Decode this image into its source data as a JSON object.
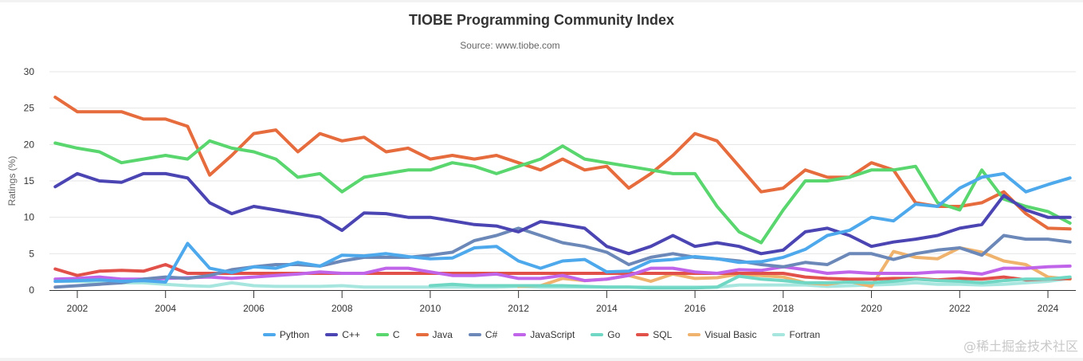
{
  "chart_data": {
    "type": "line",
    "title": "TIOBE Programming Community Index",
    "subtitle": "Source: www.tiobe.com",
    "xlabel": "",
    "ylabel": "Ratings (%)",
    "xlim": [
      2001.45,
      2024.65
    ],
    "ylim": [
      0,
      30
    ],
    "x_ticks": [
      "2002",
      "2004",
      "2006",
      "2008",
      "2010",
      "2012",
      "2014",
      "2016",
      "2018",
      "2020",
      "2022",
      "2024"
    ],
    "y_ticks": [
      "0",
      "5",
      "10",
      "15",
      "20",
      "25",
      "30"
    ],
    "grid": true,
    "legend": "bottom",
    "x": [
      2001.5,
      2002.0,
      2002.5,
      2003.0,
      2003.5,
      2004.0,
      2004.5,
      2005.0,
      2005.5,
      2006.0,
      2006.5,
      2007.0,
      2007.5,
      2008.0,
      2008.5,
      2009.0,
      2009.5,
      2010.0,
      2010.5,
      2011.0,
      2011.5,
      2012.0,
      2012.5,
      2013.0,
      2013.5,
      2014.0,
      2014.5,
      2015.0,
      2015.5,
      2016.0,
      2016.5,
      2017.0,
      2017.5,
      2018.0,
      2018.5,
      2019.0,
      2019.5,
      2020.0,
      2020.5,
      2021.0,
      2021.5,
      2022.0,
      2022.5,
      2023.0,
      2023.5,
      2024.0,
      2024.5
    ],
    "series": [
      {
        "name": "Python",
        "color": "#4ea8ec",
        "values": [
          1.2,
          1.3,
          1.4,
          1.2,
          1.3,
          1.1,
          6.4,
          3.0,
          2.4,
          3.2,
          3.0,
          3.8,
          3.3,
          4.8,
          4.7,
          5.0,
          4.6,
          4.3,
          4.4,
          5.8,
          6.0,
          4.0,
          3.0,
          4.0,
          4.2,
          2.5,
          2.6,
          4.0,
          4.2,
          4.6,
          4.3,
          3.8,
          3.9,
          4.5,
          5.6,
          7.5,
          8.2,
          10.0,
          9.5,
          11.8,
          11.5,
          14.0,
          15.5,
          16.0,
          13.5,
          14.5,
          15.4
        ]
      },
      {
        "name": "C++",
        "color": "#4b44b3",
        "values": [
          14.2,
          16.0,
          15.0,
          14.8,
          16.0,
          16.0,
          15.4,
          12.0,
          10.5,
          11.5,
          11.0,
          10.5,
          10.0,
          8.2,
          10.6,
          10.5,
          10.0,
          10.0,
          9.5,
          9.0,
          8.8,
          8.0,
          9.4,
          9.0,
          8.5,
          6.0,
          5.0,
          6.0,
          7.5,
          6.0,
          6.5,
          6.0,
          5.0,
          5.5,
          8.0,
          8.5,
          7.5,
          6.0,
          6.6,
          7.0,
          7.5,
          8.5,
          9.0,
          13.0,
          11.0,
          10.0,
          10.0
        ]
      },
      {
        "name": "C",
        "color": "#5ad66e",
        "values": [
          20.2,
          19.5,
          19.0,
          17.5,
          18.0,
          18.5,
          18.0,
          20.5,
          19.5,
          19.0,
          18.0,
          15.5,
          16.0,
          13.5,
          15.5,
          16.0,
          16.5,
          16.5,
          17.5,
          17.0,
          16.0,
          17.0,
          18.0,
          19.8,
          18.0,
          17.5,
          17.0,
          16.5,
          16.0,
          16.0,
          11.5,
          8.0,
          6.5,
          11.0,
          15.0,
          15.0,
          15.5,
          16.5,
          16.5,
          17.0,
          12.0,
          11.0,
          16.5,
          12.5,
          11.5,
          10.8,
          9.2
        ]
      },
      {
        "name": "Java",
        "color": "#e66c3d",
        "values": [
          26.5,
          24.5,
          24.5,
          24.5,
          23.5,
          23.5,
          22.5,
          15.8,
          18.5,
          21.5,
          22.0,
          19.0,
          21.5,
          20.5,
          21.0,
          19.0,
          19.5,
          18.0,
          18.5,
          18.0,
          18.5,
          17.5,
          16.5,
          18.0,
          16.5,
          17.0,
          14.0,
          16.0,
          18.5,
          21.5,
          20.5,
          17.0,
          13.5,
          14.0,
          16.5,
          15.5,
          15.5,
          17.5,
          16.5,
          12.0,
          11.5,
          11.5,
          12.0,
          13.5,
          10.5,
          8.5,
          8.4
        ]
      },
      {
        "name": "C#",
        "color": "#6b88b8",
        "values": [
          0.4,
          0.6,
          0.8,
          1.0,
          1.5,
          1.8,
          1.6,
          2.0,
          2.8,
          3.2,
          3.5,
          3.5,
          3.3,
          4.0,
          4.5,
          4.5,
          4.5,
          4.8,
          5.2,
          6.8,
          7.5,
          8.5,
          7.5,
          6.5,
          6.0,
          5.2,
          3.5,
          4.5,
          5.0,
          4.5,
          4.3,
          4.0,
          3.5,
          3.2,
          3.8,
          3.5,
          5.0,
          5.0,
          4.2,
          5.0,
          5.5,
          5.8,
          4.8,
          7.5,
          7.0,
          7.0,
          6.6
        ]
      },
      {
        "name": "JavaScript",
        "color": "#c065ea",
        "values": [
          1.5,
          1.6,
          1.8,
          1.5,
          1.5,
          1.6,
          1.7,
          1.8,
          1.6,
          1.8,
          2.0,
          2.2,
          2.5,
          2.3,
          2.3,
          3.0,
          3.0,
          2.5,
          2.0,
          2.0,
          2.2,
          1.6,
          1.6,
          2.0,
          1.3,
          1.5,
          2.0,
          3.0,
          3.0,
          2.5,
          2.3,
          2.8,
          2.7,
          3.2,
          2.8,
          2.3,
          2.5,
          2.3,
          2.3,
          2.3,
          2.5,
          2.5,
          2.2,
          3.0,
          3.0,
          3.2,
          3.3
        ]
      },
      {
        "name": "Go",
        "color": "#6fd7c3",
        "values": [
          null,
          null,
          null,
          null,
          null,
          null,
          null,
          null,
          null,
          null,
          null,
          null,
          null,
          null,
          null,
          null,
          null,
          0.6,
          0.8,
          0.6,
          0.6,
          0.6,
          0.6,
          0.6,
          0.5,
          0.4,
          0.4,
          0.3,
          0.3,
          0.3,
          0.4,
          1.9,
          1.5,
          1.3,
          1.0,
          1.0,
          1.1,
          1.0,
          1.2,
          1.5,
          1.3,
          1.2,
          1.0,
          1.3,
          1.5,
          1.5,
          1.8
        ]
      },
      {
        "name": "SQL",
        "color": "#e2504a",
        "values": [
          2.9,
          2.0,
          2.6,
          2.7,
          2.6,
          3.5,
          2.3,
          2.3,
          2.3,
          2.3,
          2.3,
          2.3,
          2.3,
          2.3,
          2.3,
          2.3,
          2.3,
          2.3,
          2.3,
          2.3,
          2.3,
          2.3,
          2.3,
          2.3,
          2.3,
          2.3,
          2.3,
          2.3,
          2.3,
          2.3,
          2.3,
          2.3,
          2.3,
          2.3,
          1.8,
          1.6,
          1.5,
          1.5,
          1.6,
          1.6,
          1.4,
          1.6,
          1.5,
          1.8,
          1.4,
          1.5,
          1.6
        ]
      },
      {
        "name": "Visual Basic",
        "color": "#efb36e",
        "values": [
          null,
          null,
          null,
          null,
          null,
          null,
          null,
          null,
          null,
          null,
          null,
          null,
          null,
          null,
          null,
          null,
          null,
          null,
          null,
          null,
          null,
          0.5,
          0.6,
          1.6,
          1.3,
          1.5,
          2.0,
          1.2,
          2.2,
          1.6,
          1.7,
          2.2,
          2.0,
          1.8,
          1.0,
          0.8,
          1.2,
          0.5,
          5.3,
          4.5,
          4.3,
          5.8,
          5.2,
          4.0,
          3.5,
          1.8,
          1.5
        ]
      },
      {
        "name": "Fortran",
        "color": "#a6e6df",
        "values": [
          1.2,
          1.2,
          1.1,
          1.0,
          1.0,
          0.8,
          0.6,
          0.5,
          1.0,
          0.6,
          0.5,
          0.5,
          0.5,
          0.6,
          0.4,
          0.4,
          0.4,
          0.4,
          0.4,
          0.4,
          0.4,
          0.5,
          0.4,
          0.4,
          0.4,
          0.4,
          0.4,
          0.4,
          0.4,
          0.4,
          0.4,
          0.7,
          0.7,
          0.7,
          0.7,
          0.5,
          0.6,
          0.7,
          0.8,
          1.0,
          0.8,
          0.8,
          0.7,
          0.8,
          1.0,
          1.2,
          1.6
        ]
      }
    ]
  },
  "watermark": "@稀土掘金技术社区"
}
